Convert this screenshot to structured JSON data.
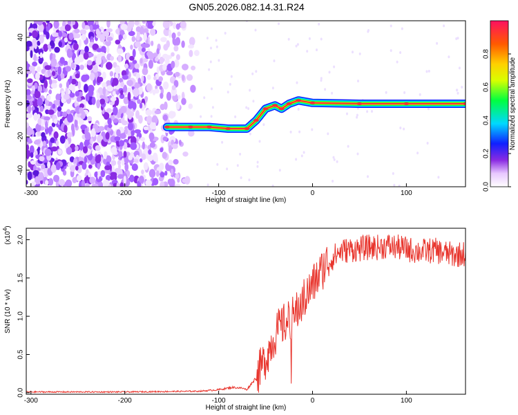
{
  "title": "GN05.2026.082.14.31.R24",
  "colorbar": {
    "label": "Normalized spectral amplitude",
    "range": [
      0,
      1
    ],
    "ticks": [
      "0.0",
      "0.2",
      "0.4",
      "0.6",
      "0.8"
    ],
    "tick_values": [
      0,
      0.2,
      0.4,
      0.6,
      0.8
    ]
  },
  "chart_data": [
    {
      "type": "heatmap",
      "xlabel": "Height of straight line (km)",
      "ylabel": "Frequency (Hz)",
      "xlim": [
        -305,
        163
      ],
      "ylim": [
        -50,
        50
      ],
      "xticks": [
        -300,
        -200,
        -100,
        0,
        100
      ],
      "xtick_labels": [
        "-300",
        "-200",
        "-100",
        "0",
        "100"
      ],
      "yticks": [
        -40,
        -20,
        0,
        20,
        40
      ],
      "ytick_labels": [
        "-40",
        "-20",
        "0",
        "20",
        "40"
      ],
      "ridge_path": [
        {
          "x": -155,
          "y": -14
        },
        {
          "x": -130,
          "y": -14
        },
        {
          "x": -110,
          "y": -14
        },
        {
          "x": -90,
          "y": -15
        },
        {
          "x": -70,
          "y": -15
        },
        {
          "x": -60,
          "y": -10
        },
        {
          "x": -50,
          "y": -3
        },
        {
          "x": -40,
          "y": -1
        },
        {
          "x": -33,
          "y": -3
        },
        {
          "x": -25,
          "y": 0
        },
        {
          "x": -15,
          "y": 2
        },
        {
          "x": 0,
          "y": 0.5
        },
        {
          "x": 50,
          "y": 0
        },
        {
          "x": 100,
          "y": 0
        },
        {
          "x": 163,
          "y": 0
        }
      ],
      "noise_region": {
        "x_range": [
          -305,
          -120
        ],
        "y_range": [
          -50,
          50
        ]
      }
    },
    {
      "type": "line",
      "xlabel": "Height of straight line (km)",
      "ylabel": "SNR (10 * v/v)",
      "y_multiplier": "(x10",
      "y_multiplier_exp": "4",
      "y_multiplier_close": ")",
      "xlim": [
        -305,
        163
      ],
      "ylim": [
        -0.02,
        2.15
      ],
      "xticks": [
        -300,
        -200,
        -100,
        0,
        100
      ],
      "xtick_labels": [
        "-300",
        "-200",
        "-100",
        "0",
        "100"
      ],
      "yticks": [
        0,
        0.5,
        1.0,
        1.5,
        2.0
      ],
      "ytick_labels": [
        "0.0",
        "0.5",
        "1.0",
        "1.5",
        "2.0"
      ],
      "series": [
        {
          "color": "#e8342c",
          "x": [
            -305,
            -200,
            -120,
            -100,
            -85,
            -75,
            -70,
            -60,
            -50,
            -45,
            -40,
            -35,
            -30,
            -25,
            -20,
            -15,
            -10,
            -5,
            0,
            5,
            10,
            15,
            20,
            25,
            30,
            40,
            50,
            60,
            70,
            80,
            90,
            100,
            110,
            120,
            130,
            140,
            150,
            163
          ],
          "y": [
            0.01,
            0.01,
            0.02,
            0.04,
            0.07,
            0.06,
            0.04,
            0.2,
            0.45,
            0.6,
            0.75,
            0.85,
            0.9,
            0.95,
            1.0,
            1.1,
            1.2,
            1.3,
            1.4,
            1.5,
            1.6,
            1.7,
            1.75,
            1.8,
            1.85,
            1.87,
            1.88,
            1.9,
            1.9,
            1.92,
            1.9,
            1.88,
            1.85,
            1.85,
            1.86,
            1.83,
            1.8,
            1.82
          ]
        }
      ]
    }
  ]
}
